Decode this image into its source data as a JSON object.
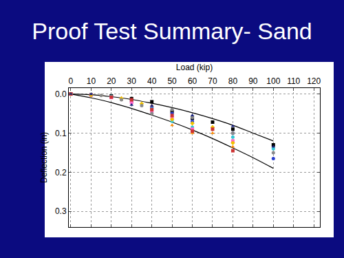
{
  "chart_data": {
    "type": "scatter",
    "title": "Proof Test Summary- Sand",
    "xlabel": "Load (kip)",
    "ylabel": "Deflection (in)",
    "xlim": [
      -1,
      123
    ],
    "ylim": [
      0.34,
      -0.015
    ],
    "xticks": [
      0,
      10,
      20,
      30,
      40,
      50,
      60,
      70,
      80,
      90,
      100,
      110,
      120
    ],
    "yticks": [
      {
        "value": 0,
        "label": "0.0"
      },
      0.1,
      0.2,
      0.3
    ],
    "grid": true,
    "series": [
      {
        "type": "line",
        "color": "#000000",
        "line_style": "solid",
        "x": [
          0,
          10,
          20,
          30,
          40,
          50,
          60,
          70,
          80,
          90,
          100
        ],
        "values": [
          0,
          0.002,
          0.007,
          0.014,
          0.024,
          0.035,
          0.048,
          0.063,
          0.08,
          0.1,
          0.12
        ]
      },
      {
        "type": "line",
        "color": "#000000",
        "line_style": "solid",
        "x": [
          0,
          10,
          20,
          30,
          40,
          50,
          60,
          70,
          80,
          90,
          100
        ],
        "values": [
          0,
          0.01,
          0.022,
          0.037,
          0.054,
          0.072,
          0.092,
          0.114,
          0.138,
          0.163,
          0.19
        ]
      },
      {
        "type": "scatter",
        "color": "#000000",
        "marker": "square",
        "x": [
          0,
          10,
          20,
          30,
          40,
          50,
          60,
          70,
          80,
          100
        ],
        "values": [
          0,
          0.002,
          0.005,
          0.012,
          0.02,
          0.045,
          0.062,
          0.072,
          0.09,
          0.13
        ]
      },
      {
        "type": "scatter",
        "color": "#2a3fd0",
        "marker": "circle",
        "x": [
          0,
          10,
          20,
          30,
          40,
          50,
          60,
          80,
          100
        ],
        "values": [
          0,
          0.003,
          0.008,
          0.02,
          0.035,
          0.05,
          0.07,
          0.1,
          0.165
        ]
      },
      {
        "type": "scatter",
        "color": "#ff8c00",
        "marker": "triangle-up",
        "x": [
          0,
          15,
          25,
          30,
          40,
          50,
          60,
          70,
          80
        ],
        "values": [
          0,
          0.004,
          0.01,
          0.02,
          0.03,
          0.08,
          0.1,
          0.1,
          0.135
        ]
      },
      {
        "type": "scatter",
        "color": "#33c6d6",
        "marker": "circle",
        "x": [
          0,
          10,
          20,
          30,
          40,
          50,
          60,
          80,
          100
        ],
        "values": [
          0,
          0.002,
          0.006,
          0.018,
          0.038,
          0.07,
          0.085,
          0.11,
          0.14
        ]
      },
      {
        "type": "scatter",
        "color": "#ff66cc",
        "marker": "square",
        "x": [
          0,
          10,
          20,
          30,
          40,
          50,
          60,
          80
        ],
        "values": [
          0,
          0.003,
          0.009,
          0.022,
          0.045,
          0.06,
          0.09,
          0.12
        ]
      },
      {
        "type": "scatter",
        "color": "#f2c200",
        "marker": "diamond",
        "x": [
          0,
          10,
          25,
          35,
          50,
          60,
          70,
          80
        ],
        "values": [
          0,
          0.003,
          0.012,
          0.025,
          0.065,
          0.075,
          0.085,
          0.125
        ]
      },
      {
        "type": "scatter",
        "color": "#8a8a8a",
        "marker": "circle",
        "x": [
          0,
          15,
          25,
          35,
          40,
          50,
          60,
          80,
          100
        ],
        "values": [
          0,
          0.004,
          0.015,
          0.03,
          0.05,
          0.04,
          0.06,
          0.1,
          0.15
        ]
      },
      {
        "type": "scatter",
        "color": "#cc3333",
        "marker": "square",
        "x": [
          0,
          20,
          30,
          40,
          50,
          60,
          70,
          80
        ],
        "values": [
          0,
          0.008,
          0.015,
          0.04,
          0.055,
          0.095,
          0.09,
          0.145
        ]
      },
      {
        "type": "scatter",
        "color": "#1a237e",
        "marker": "triangle-up",
        "x": [
          0,
          10,
          30,
          40,
          60,
          80,
          100
        ],
        "values": [
          0,
          0.001,
          0.028,
          0.03,
          0.055,
          0.082,
          0.135
        ]
      }
    ]
  }
}
